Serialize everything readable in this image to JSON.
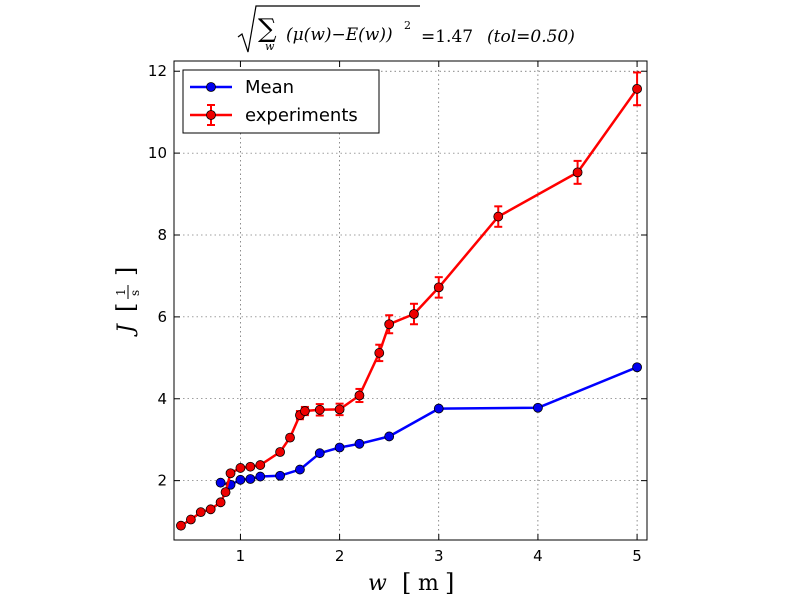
{
  "chart_data": {
    "type": "line",
    "title": {
      "prefix": "(μ(w)−E(w))",
      "sub": "w",
      "sup": "2",
      "value": "=1.47",
      "tol": "(tol=0.50)"
    },
    "xlabel": {
      "var": "w",
      "unit": "m"
    },
    "ylabel": {
      "var": "J",
      "num": "1",
      "den": "s"
    },
    "xlim": [
      0.33,
      5.1
    ],
    "ylim": [
      0.55,
      12.25
    ],
    "xticks": [
      1,
      2,
      3,
      4,
      5
    ],
    "yticks": [
      2,
      4,
      6,
      8,
      10,
      12
    ],
    "grid": true,
    "legend_position": "top-left",
    "series": [
      {
        "name": "Mean",
        "color": "#0000ff",
        "marker_color": "#0000ee",
        "x": [
          0.8,
          0.9,
          1.0,
          1.1,
          1.2,
          1.4,
          1.6,
          1.8,
          2.0,
          2.2,
          2.5,
          3.0,
          4.0,
          5.0
        ],
        "y": [
          1.95,
          1.9,
          2.02,
          2.04,
          2.1,
          2.12,
          2.27,
          2.67,
          2.81,
          2.9,
          3.08,
          3.76,
          3.78,
          4.77
        ]
      },
      {
        "name": "experiments",
        "color": "#ff0000",
        "marker_color": "#ee0000",
        "x": [
          0.4,
          0.5,
          0.6,
          0.7,
          0.8,
          0.85,
          0.9,
          1.0,
          1.1,
          1.2,
          1.4,
          1.5,
          1.6,
          1.65,
          1.8,
          2.0,
          2.2,
          2.4,
          2.5,
          2.75,
          3.0,
          3.6,
          4.4,
          5.0
        ],
        "y": [
          0.9,
          1.05,
          1.23,
          1.3,
          1.47,
          1.72,
          2.18,
          2.31,
          2.34,
          2.38,
          2.7,
          3.05,
          3.6,
          3.7,
          3.73,
          3.74,
          4.08,
          5.12,
          5.82,
          6.07,
          6.72,
          8.45,
          9.53,
          11.57
        ],
        "err": [
          0,
          0,
          0,
          0,
          0,
          0,
          0,
          0,
          0,
          0,
          0,
          0,
          0.1,
          0.1,
          0.14,
          0.14,
          0.16,
          0.2,
          0.22,
          0.25,
          0.25,
          0.25,
          0.28,
          0.4
        ]
      }
    ]
  }
}
